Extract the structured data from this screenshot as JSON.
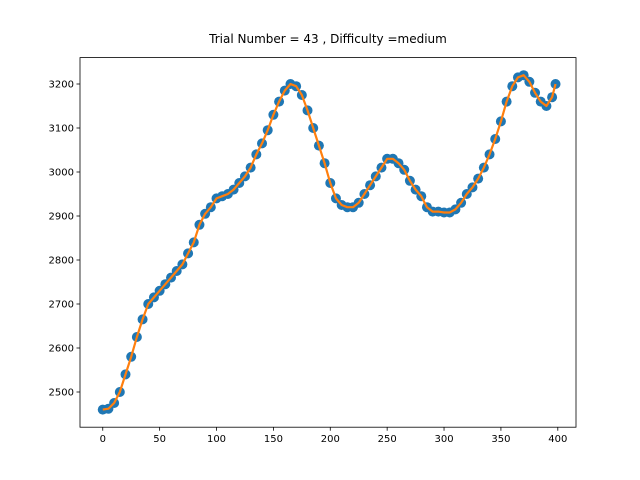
{
  "chart_data": {
    "type": "line",
    "title": "Trial Number = 43  , Difficulty =medium",
    "series": [
      {
        "marker_color": "#1f77b4",
        "line_color": "#ff7f0e",
        "x": [
          0,
          5,
          10,
          15,
          20,
          25,
          30,
          35,
          40,
          45,
          50,
          55,
          60,
          65,
          70,
          75,
          80,
          85,
          90,
          95,
          100,
          105,
          110,
          115,
          120,
          125,
          130,
          135,
          140,
          145,
          150,
          155,
          160,
          165,
          170,
          175,
          180,
          185,
          190,
          195,
          200,
          205,
          210,
          215,
          220,
          225,
          230,
          235,
          240,
          245,
          250,
          255,
          260,
          265,
          270,
          275,
          280,
          285,
          290,
          295,
          300,
          305,
          310,
          315,
          320,
          325,
          330,
          335,
          340,
          345,
          350,
          355,
          360,
          365,
          370,
          375,
          380,
          385,
          390,
          395,
          398
        ],
        "values": [
          2460,
          2462,
          2475,
          2500,
          2540,
          2580,
          2625,
          2665,
          2700,
          2715,
          2730,
          2745,
          2760,
          2775,
          2790,
          2815,
          2840,
          2880,
          2905,
          2920,
          2940,
          2945,
          2950,
          2960,
          2975,
          2990,
          3010,
          3040,
          3065,
          3095,
          3130,
          3160,
          3185,
          3200,
          3195,
          3175,
          3140,
          3100,
          3060,
          3020,
          2975,
          2940,
          2925,
          2920,
          2920,
          2930,
          2950,
          2970,
          2990,
          3010,
          3030,
          3030,
          3020,
          3005,
          2980,
          2960,
          2945,
          2920,
          2910,
          2910,
          2908,
          2908,
          2915,
          2930,
          2950,
          2965,
          2985,
          3010,
          3040,
          3075,
          3115,
          3160,
          3195,
          3215,
          3220,
          3205,
          3180,
          3160,
          3150,
          3170,
          3200
        ]
      }
    ],
    "xlim": [
      -20,
      416
    ],
    "xticks": [
      0,
      50,
      100,
      150,
      200,
      250,
      300,
      350,
      400
    ],
    "ylim": [
      2420,
      3260
    ],
    "yticks": [
      2500,
      2600,
      2700,
      2800,
      2900,
      3000,
      3100,
      3200
    ]
  }
}
